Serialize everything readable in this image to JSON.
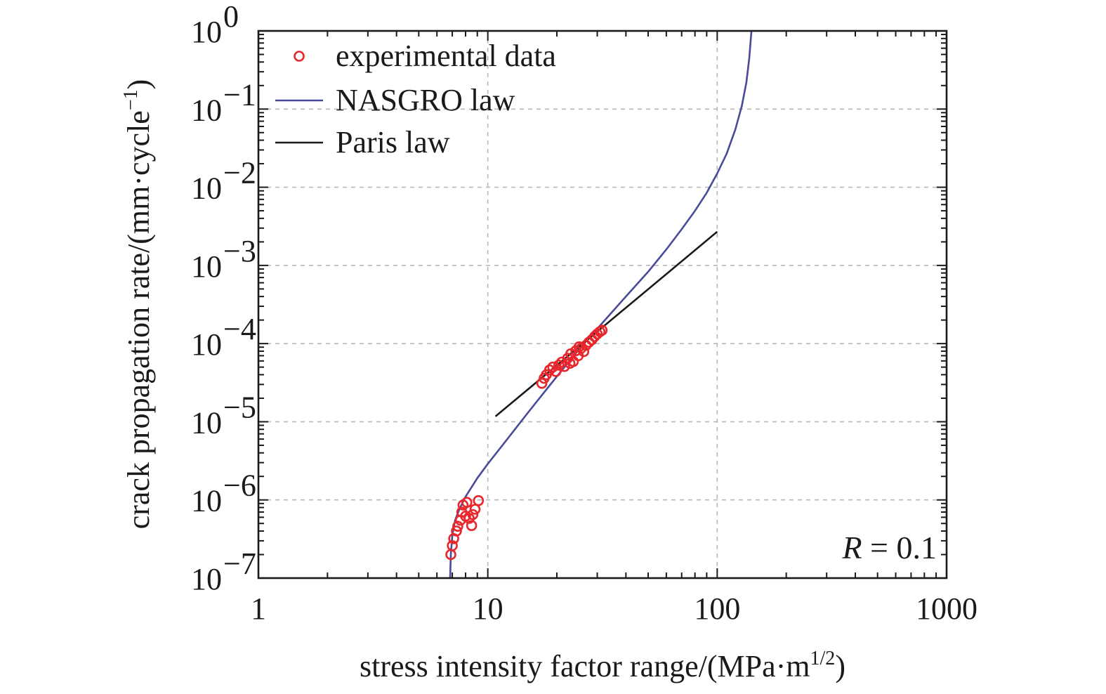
{
  "chart_data": {
    "type": "scatter",
    "xscale": "log",
    "yscale": "log",
    "xlim": [
      1,
      1000
    ],
    "ylim": [
      1e-07,
      1
    ],
    "grid": true,
    "legend_position": "top-left",
    "xlabel": {
      "main": "stress intensity factor range/(MPa·m",
      "sup": "1/2",
      "tail": ")"
    },
    "ylabel": {
      "main": "crack propagation rate/(mm·cycle",
      "sup": "−1",
      "tail": ")"
    },
    "x_ticks": [
      {
        "value": 1,
        "label": "1"
      },
      {
        "value": 10,
        "label": "10"
      },
      {
        "value": 100,
        "label": "100"
      },
      {
        "value": 1000,
        "label": "1000"
      }
    ],
    "y_ticks": [
      {
        "value": 1,
        "base": "10",
        "exp": "0"
      },
      {
        "value": 0.1,
        "base": "10",
        "exp": "−1"
      },
      {
        "value": 0.01,
        "base": "10",
        "exp": "−2"
      },
      {
        "value": 0.001,
        "base": "10",
        "exp": "−3"
      },
      {
        "value": 0.0001,
        "base": "10",
        "exp": "−4"
      },
      {
        "value": 1e-05,
        "base": "10",
        "exp": "−5"
      },
      {
        "value": 1e-06,
        "base": "10",
        "exp": "−6"
      },
      {
        "value": 1e-07,
        "base": "10",
        "exp": "−7"
      }
    ],
    "annotation": {
      "italic": "R",
      "rest": " = 0.1"
    },
    "colors": {
      "experimental": "#e8262b",
      "nasgro": "#4a4a9a",
      "paris": "#1a1a1a",
      "axis": "#1a1a1a"
    },
    "series": [
      {
        "name": "experimental data",
        "kind": "scatter",
        "points": [
          {
            "x": 6.9,
            "y": 2e-07
          },
          {
            "x": 7.0,
            "y": 2.6e-07
          },
          {
            "x": 7.1,
            "y": 3.2e-07
          },
          {
            "x": 7.3,
            "y": 4e-07
          },
          {
            "x": 7.4,
            "y": 4.6e-07
          },
          {
            "x": 7.6,
            "y": 5.5e-07
          },
          {
            "x": 7.7,
            "y": 7e-07
          },
          {
            "x": 7.8,
            "y": 8.6e-07
          },
          {
            "x": 8.1,
            "y": 9.3e-07
          },
          {
            "x": 8.3,
            "y": 5.8e-07
          },
          {
            "x": 8.5,
            "y": 4.7e-07
          },
          {
            "x": 8.6,
            "y": 6.5e-07
          },
          {
            "x": 8.8,
            "y": 7.6e-07
          },
          {
            "x": 9.1,
            "y": 9.8e-07
          },
          {
            "x": 8.0,
            "y": 6.2e-07
          },
          {
            "x": 17.2,
            "y": 3.1e-05
          },
          {
            "x": 17.6,
            "y": 3.6e-05
          },
          {
            "x": 18.0,
            "y": 4e-05
          },
          {
            "x": 18.6,
            "y": 4.6e-05
          },
          {
            "x": 19.2,
            "y": 5e-05
          },
          {
            "x": 19.8,
            "y": 4.4e-05
          },
          {
            "x": 20.4,
            "y": 5.3e-05
          },
          {
            "x": 21.0,
            "y": 5.8e-05
          },
          {
            "x": 21.6,
            "y": 5.1e-05
          },
          {
            "x": 22.3,
            "y": 6.5e-05
          },
          {
            "x": 23.0,
            "y": 7.4e-05
          },
          {
            "x": 23.6,
            "y": 5.9e-05
          },
          {
            "x": 24.2,
            "y": 8.1e-05
          },
          {
            "x": 24.8,
            "y": 7e-05
          },
          {
            "x": 25.5,
            "y": 8.7e-05
          },
          {
            "x": 26.2,
            "y": 7.9e-05
          },
          {
            "x": 26.8,
            "y": 9.5e-05
          },
          {
            "x": 27.6,
            "y": 0.000104
          },
          {
            "x": 28.4,
            "y": 0.000112
          },
          {
            "x": 29.2,
            "y": 0.000123
          },
          {
            "x": 30.0,
            "y": 0.000133
          },
          {
            "x": 30.8,
            "y": 0.000142
          },
          {
            "x": 31.5,
            "y": 0.000148
          },
          {
            "x": 22.8,
            "y": 5.6e-05
          },
          {
            "x": 25.0,
            "y": 9.1e-05
          }
        ]
      },
      {
        "name": "NASGRO law",
        "kind": "line",
        "points": [
          {
            "x": 6.85,
            "y": 1e-07
          },
          {
            "x": 6.9,
            "y": 2e-07
          },
          {
            "x": 7.0,
            "y": 3.5e-07
          },
          {
            "x": 7.2,
            "y": 5.5e-07
          },
          {
            "x": 7.5,
            "y": 7.5e-07
          },
          {
            "x": 8.0,
            "y": 1.1e-06
          },
          {
            "x": 9.0,
            "y": 1.9e-06
          },
          {
            "x": 10.0,
            "y": 2.9e-06
          },
          {
            "x": 12.0,
            "y": 5.7e-06
          },
          {
            "x": 15.0,
            "y": 1.32e-05
          },
          {
            "x": 20.0,
            "y": 3.8e-05
          },
          {
            "x": 25.0,
            "y": 8.5e-05
          },
          {
            "x": 30.0,
            "y": 0.000155
          },
          {
            "x": 40.0,
            "y": 0.0004
          },
          {
            "x": 50.0,
            "y": 0.00083
          },
          {
            "x": 60.0,
            "y": 0.0016
          },
          {
            "x": 70.0,
            "y": 0.0029
          },
          {
            "x": 80.0,
            "y": 0.005
          },
          {
            "x": 90.0,
            "y": 0.0085
          },
          {
            "x": 100.0,
            "y": 0.015
          },
          {
            "x": 110.0,
            "y": 0.027
          },
          {
            "x": 120.0,
            "y": 0.055
          },
          {
            "x": 128.0,
            "y": 0.11
          },
          {
            "x": 134.0,
            "y": 0.22
          },
          {
            "x": 138.0,
            "y": 0.45
          },
          {
            "x": 141.0,
            "y": 1.0
          }
        ]
      },
      {
        "name": "Paris law",
        "kind": "line",
        "points": [
          {
            "x": 10.8,
            "y": 1.17e-05
          },
          {
            "x": 100.0,
            "y": 0.0027
          }
        ]
      }
    ]
  }
}
